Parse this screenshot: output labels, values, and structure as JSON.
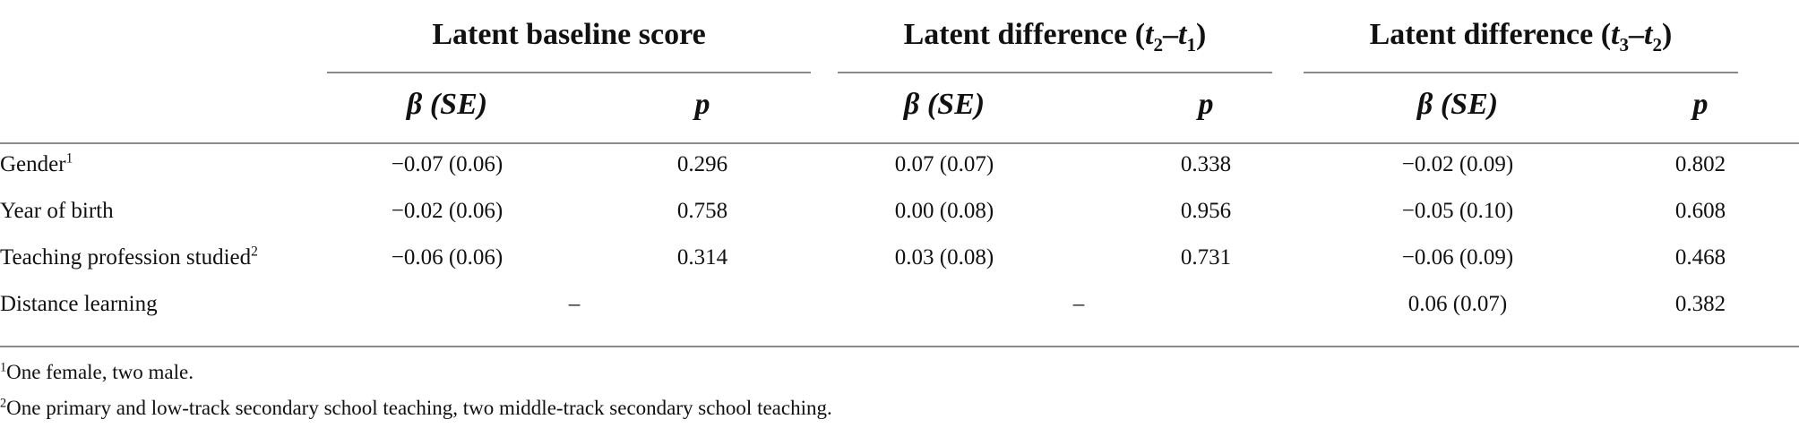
{
  "table": {
    "group_headers": {
      "g1": "Latent baseline score",
      "g2": {
        "prefix": "Latent difference (",
        "a": "t",
        "a_sub": "2",
        "dash": "–",
        "b": "t",
        "b_sub": "1",
        "suffix": ")"
      },
      "g3": {
        "prefix": "Latent difference (",
        "a": "t",
        "a_sub": "3",
        "dash": "–",
        "b": "t",
        "b_sub": "2",
        "suffix": ")"
      }
    },
    "sub_headers": {
      "beta_se": "β (SE)",
      "p": "p"
    },
    "rows": [
      {
        "label": "Gender",
        "sup": "1",
        "cells": [
          "−0.07 (0.06)",
          "0.296",
          "0.07 (0.07)",
          "0.338",
          "−0.02 (0.09)",
          "0.802"
        ]
      },
      {
        "label": "Year of birth",
        "sup": "",
        "cells": [
          "−0.02 (0.06)",
          "0.758",
          "0.00 (0.08)",
          "0.956",
          "−0.05 (0.10)",
          "0.608"
        ]
      },
      {
        "label": "Teaching profession studied",
        "sup": "2",
        "cells": [
          "−0.06 (0.06)",
          "0.314",
          "0.03 (0.08)",
          "0.731",
          "−0.06 (0.09)",
          "0.468"
        ]
      },
      {
        "label": "Distance learning",
        "sup": "",
        "cells": [
          "–",
          "",
          "–",
          "",
          "0.06 (0.07)",
          "0.382"
        ]
      }
    ],
    "footnotes": [
      {
        "mark": "1",
        "text": "One female, two male."
      },
      {
        "mark": "2",
        "text": "One primary and low-track secondary school teaching, two middle-track secondary school teaching."
      }
    ]
  }
}
